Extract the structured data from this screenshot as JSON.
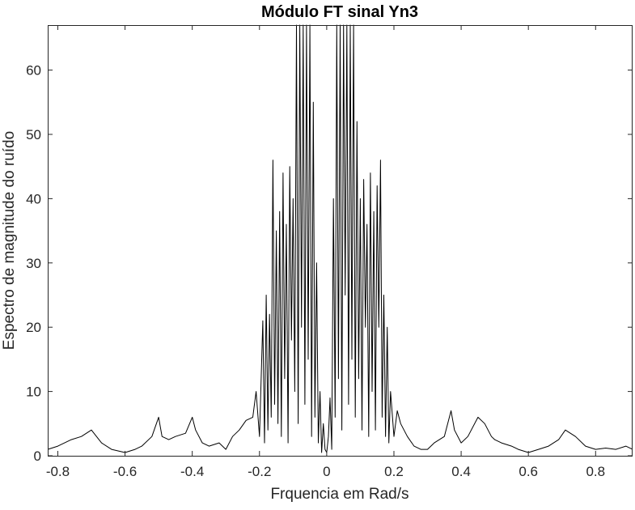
{
  "chart_data": {
    "type": "line",
    "title": "Módulo FT sinal Yn3",
    "xlabel": "Frquencia em Rad/s",
    "ylabel": "Espectro de magnitude do ruído",
    "xlim": [
      -0.83,
      0.91
    ],
    "ylim": [
      0,
      67
    ],
    "xticks": [
      -0.8,
      -0.6,
      -0.4,
      -0.2,
      0,
      0.2,
      0.4,
      0.6,
      0.8
    ],
    "xtick_labels": [
      "-0.8",
      "-0.6",
      "-0.4",
      "-0.2",
      "0",
      "0.2",
      "0.4",
      "0.6",
      "0.8"
    ],
    "yticks": [
      0,
      10,
      20,
      30,
      40,
      50,
      60
    ],
    "ytick_labels": [
      "0",
      "10",
      "20",
      "30",
      "40",
      "50",
      "60"
    ],
    "grid": false,
    "line_color": "#000000",
    "series": [
      {
        "x": [
          -0.83,
          -0.8,
          -0.76,
          -0.73,
          -0.7,
          -0.67,
          -0.64,
          -0.6,
          -0.57,
          -0.55,
          -0.52,
          -0.5,
          -0.49,
          -0.47,
          -0.45,
          -0.42,
          -0.4,
          -0.39,
          -0.37,
          -0.35,
          -0.32,
          -0.3,
          -0.28,
          -0.26,
          -0.24,
          -0.22,
          -0.21,
          -0.2,
          -0.19,
          -0.185,
          -0.18,
          -0.175,
          -0.17,
          -0.165,
          -0.16,
          -0.155,
          -0.15,
          -0.145,
          -0.14,
          -0.135,
          -0.13,
          -0.125,
          -0.12,
          -0.115,
          -0.11,
          -0.105,
          -0.1,
          -0.095,
          -0.09,
          -0.085,
          -0.08,
          -0.075,
          -0.07,
          -0.065,
          -0.06,
          -0.055,
          -0.05,
          -0.045,
          -0.04,
          -0.035,
          -0.03,
          -0.025,
          -0.02,
          -0.015,
          -0.01,
          -0.005,
          0,
          0.005,
          0.01,
          0.015,
          0.02,
          0.025,
          0.03,
          0.035,
          0.04,
          0.045,
          0.05,
          0.055,
          0.06,
          0.065,
          0.07,
          0.075,
          0.08,
          0.085,
          0.09,
          0.095,
          0.1,
          0.105,
          0.11,
          0.115,
          0.12,
          0.125,
          0.13,
          0.135,
          0.14,
          0.145,
          0.15,
          0.155,
          0.16,
          0.165,
          0.17,
          0.175,
          0.18,
          0.185,
          0.19,
          0.2,
          0.21,
          0.22,
          0.24,
          0.26,
          0.28,
          0.3,
          0.32,
          0.35,
          0.37,
          0.38,
          0.4,
          0.42,
          0.45,
          0.47,
          0.49,
          0.5,
          0.52,
          0.55,
          0.57,
          0.6,
          0.63,
          0.66,
          0.69,
          0.71,
          0.74,
          0.77,
          0.8,
          0.83,
          0.86,
          0.89,
          0.91
        ],
        "y": [
          1,
          1.5,
          2.5,
          3,
          4,
          2,
          1,
          0.5,
          1,
          1.5,
          3,
          6,
          3,
          2.5,
          3,
          3.5,
          6,
          4,
          2,
          1.5,
          2,
          1,
          3,
          4,
          5.5,
          6,
          10,
          3,
          21,
          2,
          25,
          4,
          22,
          6,
          46,
          8,
          35,
          5,
          38,
          3,
          44,
          12,
          36,
          2,
          45,
          18,
          40,
          10,
          67,
          5,
          67,
          20,
          67,
          8,
          67,
          15,
          67,
          3,
          55,
          6,
          30,
          2,
          10,
          0.5,
          5,
          1,
          0.5,
          3,
          9,
          1,
          40,
          6,
          67,
          12,
          67,
          4,
          67,
          25,
          67,
          8,
          67,
          15,
          67,
          6,
          52,
          12,
          40,
          4,
          43,
          20,
          36,
          3,
          44,
          10,
          38,
          4,
          42,
          20,
          46,
          6,
          25,
          3,
          20,
          2,
          10,
          3,
          7,
          5,
          3,
          1.5,
          1,
          1,
          2,
          3,
          7,
          4,
          2,
          3,
          6,
          5,
          3,
          2.5,
          2,
          1.5,
          1,
          0.5,
          1,
          1.5,
          2.5,
          4,
          3,
          1.5,
          1,
          1.2,
          1,
          1.5,
          1
        ]
      }
    ]
  }
}
